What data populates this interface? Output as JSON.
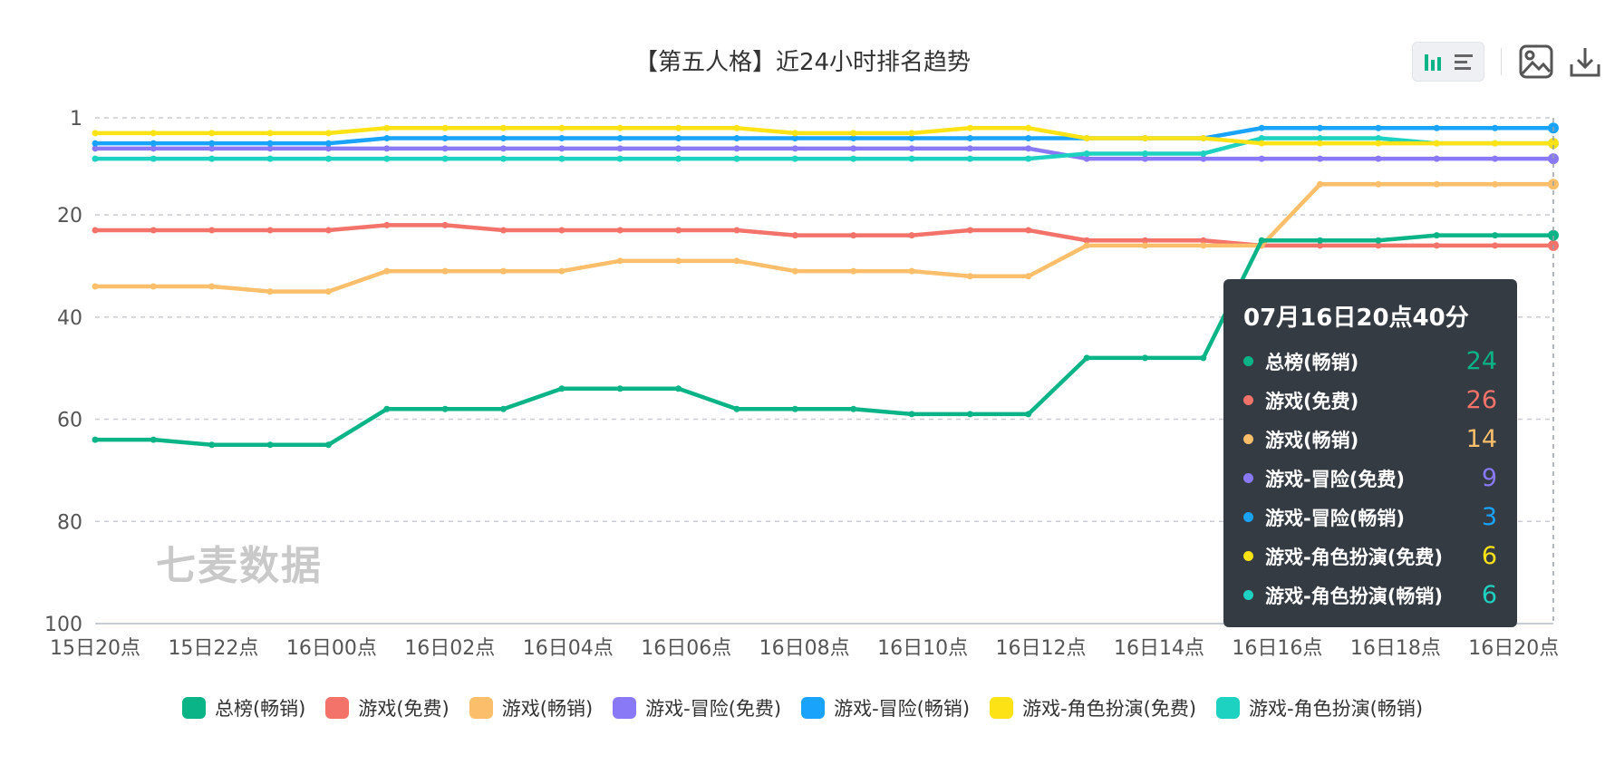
{
  "chart_data": {
    "type": "line",
    "title": "【第五人格】近24小时排名趋势",
    "y_axis": {
      "inverse": true,
      "ylim": [
        1,
        100
      ],
      "ticks": [
        1,
        20,
        40,
        60,
        80,
        100
      ]
    },
    "x_tick_labels": [
      "15日20点",
      "15日22点",
      "16日00点",
      "16日02点",
      "16日04点",
      "16日06点",
      "16日08点",
      "16日10点",
      "16日12点",
      "16日14点",
      "16日16点",
      "16日18点",
      "16日20点"
    ],
    "x_start_hour": 20,
    "x_end_hour": 44.67,
    "grid": true,
    "legend_position": "bottom",
    "series": [
      {
        "name": "总榜(畅销)",
        "color": "#0bb487",
        "values": [
          64,
          64,
          65,
          65,
          65,
          58,
          58,
          58,
          54,
          54,
          54,
          58,
          58,
          58,
          59,
          59,
          59,
          48,
          48,
          48,
          25,
          25,
          25,
          24,
          24,
          24
        ]
      },
      {
        "name": "游戏(免费)",
        "color": "#f3726a",
        "values": [
          23,
          23,
          23,
          23,
          23,
          22,
          22,
          23,
          23,
          23,
          23,
          23,
          24,
          24,
          24,
          23,
          23,
          25,
          25,
          25,
          26,
          26,
          26,
          26,
          26,
          26
        ]
      },
      {
        "name": "游戏(畅销)",
        "color": "#fbbe6a",
        "values": [
          34,
          34,
          34,
          35,
          35,
          31,
          31,
          31,
          31,
          29,
          29,
          29,
          31,
          31,
          31,
          32,
          32,
          26,
          26,
          26,
          26,
          14,
          14,
          14,
          14,
          14
        ]
      },
      {
        "name": "游戏-冒险(免费)",
        "color": "#8a79f7",
        "values": [
          7,
          7,
          7,
          7,
          7,
          7,
          7,
          7,
          7,
          7,
          7,
          7,
          7,
          7,
          7,
          7,
          7,
          9,
          9,
          9,
          9,
          9,
          9,
          9,
          9,
          9
        ]
      },
      {
        "name": "游戏-冒险(畅销)",
        "color": "#1aa3fa",
        "values": [
          6,
          6,
          6,
          6,
          6,
          5,
          5,
          5,
          5,
          5,
          5,
          5,
          5,
          5,
          5,
          5,
          5,
          5,
          5,
          5,
          3,
          3,
          3,
          3,
          3,
          3
        ]
      },
      {
        "name": "游戏-角色扮演(免费)",
        "color": "#fde316",
        "values": [
          4,
          4,
          4,
          4,
          4,
          3,
          3,
          3,
          3,
          3,
          3,
          3,
          4,
          4,
          4,
          3,
          3,
          5,
          5,
          5,
          6,
          6,
          6,
          6,
          6,
          6
        ]
      },
      {
        "name": "游戏-角色扮演(畅销)",
        "color": "#1dd2c1",
        "values": [
          9,
          9,
          9,
          9,
          9,
          9,
          9,
          9,
          9,
          9,
          9,
          9,
          9,
          9,
          9,
          9,
          9,
          8,
          8,
          8,
          5,
          5,
          5,
          6,
          6,
          6
        ]
      }
    ]
  },
  "watermark": "七麦数据",
  "tooltip": {
    "title": "07月16日20点40分",
    "rows": [
      {
        "name": "总榜(畅销)",
        "value": "24",
        "color": "#0bb487"
      },
      {
        "name": "游戏(免费)",
        "value": "26",
        "color": "#f3726a"
      },
      {
        "name": "游戏(畅销)",
        "value": "14",
        "color": "#fbbe6a"
      },
      {
        "name": "游戏-冒险(免费)",
        "value": "9",
        "color": "#8a79f7"
      },
      {
        "name": "游戏-冒险(畅销)",
        "value": "3",
        "color": "#1aa3fa"
      },
      {
        "name": "游戏-角色扮演(免费)",
        "value": "6",
        "color": "#fde316"
      },
      {
        "name": "游戏-角色扮演(畅销)",
        "value": "6",
        "color": "#1dd2c1"
      }
    ]
  },
  "toolbar": {
    "icons": [
      "bar-chart-icon",
      "list-icon",
      "image-icon",
      "download-icon"
    ],
    "accent": "#0bb487"
  }
}
